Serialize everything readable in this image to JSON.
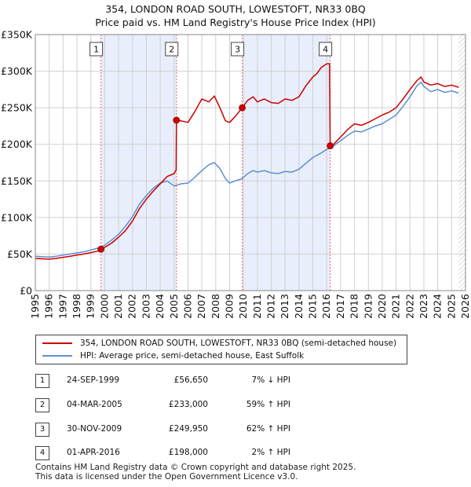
{
  "title_line1": "354, LONDON ROAD SOUTH, LOWESTOFT, NR33 0BQ",
  "title_line2": "Price paid vs. HM Land Registry's House Price Index (HPI)",
  "colors": {
    "price_paid": "#cc0000",
    "hpi": "#5b8fd0",
    "highlight_band": "#e8eefb",
    "grid": "#d0d0d0",
    "marker_line": "#ee6666"
  },
  "legend": {
    "price_paid_label": "354, LONDON ROAD SOUTH, LOWESTOFT, NR33 0BQ (semi-detached house)",
    "hpi_label": "HPI: Average price, semi-detached house, East Suffolk"
  },
  "sales": [
    {
      "num": "1",
      "date": "24-SEP-1999",
      "price": "£56,650",
      "hpi_change": "7% ↓ HPI"
    },
    {
      "num": "2",
      "date": "04-MAR-2005",
      "price": "£233,000",
      "hpi_change": "59% ↑ HPI"
    },
    {
      "num": "3",
      "date": "30-NOV-2009",
      "price": "£249,950",
      "hpi_change": "62% ↑ HPI"
    },
    {
      "num": "4",
      "date": "01-APR-2016",
      "price": "£198,000",
      "hpi_change": "2% ↑ HPI"
    }
  ],
  "footer_line1": "Contains HM Land Registry data © Crown copyright and database right 2025.",
  "footer_line2": "This data is licensed under the Open Government Licence v3.0.",
  "chart_data": {
    "type": "line",
    "title": "354, LONDON ROAD SOUTH, LOWESTOFT, NR33 0BQ — Price paid vs. HM Land Registry's House Price Index (HPI)",
    "xlabel": "",
    "ylabel": "",
    "xlim": [
      1995,
      2026
    ],
    "ylim": [
      0,
      350000
    ],
    "y_ticks": [
      0,
      50000,
      100000,
      150000,
      200000,
      250000,
      300000,
      350000
    ],
    "y_tick_labels": [
      "£0",
      "£50K",
      "£100K",
      "£150K",
      "£200K",
      "£250K",
      "£300K",
      "£350K"
    ],
    "x_ticks": [
      1995,
      1996,
      1997,
      1998,
      1999,
      2000,
      2001,
      2002,
      2003,
      2004,
      2005,
      2006,
      2007,
      2008,
      2009,
      2010,
      2011,
      2012,
      2013,
      2014,
      2015,
      2016,
      2017,
      2018,
      2019,
      2020,
      2021,
      2022,
      2023,
      2024,
      2025,
      2026
    ],
    "x_tick_labels": [
      "1995",
      "1996",
      "1997",
      "1998",
      "1999",
      "2000",
      "2001",
      "2002",
      "2003",
      "2004",
      "2005",
      "2006",
      "2007",
      "2008",
      "2009",
      "2010",
      "2011",
      "2012",
      "2013",
      "2014",
      "2015",
      "2016",
      "2017",
      "2018",
      "2019",
      "2020",
      "2021",
      "2022",
      "2023",
      "2024",
      "2025",
      "2026"
    ],
    "highlight_ranges": [
      [
        1999.73,
        2005.17
      ],
      [
        2009.91,
        2016.25
      ]
    ],
    "hatched_from": 2025.5,
    "sale_markers": [
      {
        "label": "1",
        "x": 1999.73,
        "price": 56650
      },
      {
        "label": "2",
        "x": 2005.17,
        "price": 233000
      },
      {
        "label": "3",
        "x": 2009.91,
        "price": 249950
      },
      {
        "label": "4",
        "x": 2016.25,
        "price": 198000
      }
    ],
    "series": [
      {
        "name": "354, LONDON ROAD SOUTH, LOWESTOFT, NR33 0BQ (semi-detached house)",
        "x": [
          1995.0,
          1995.5,
          1996.0,
          1996.5,
          1997.0,
          1997.5,
          1998.0,
          1998.5,
          1999.0,
          1999.5,
          1999.73,
          2000.0,
          2000.5,
          2001.0,
          2001.5,
          2002.0,
          2002.5,
          2003.0,
          2003.5,
          2004.0,
          2004.5,
          2005.0,
          2005.15,
          2005.17,
          2005.5,
          2006.0,
          2006.5,
          2007.0,
          2007.5,
          2007.9,
          2008.3,
          2008.7,
          2009.0,
          2009.4,
          2009.91,
          2010.3,
          2010.7,
          2011.0,
          2011.5,
          2012.0,
          2012.5,
          2013.0,
          2013.5,
          2014.0,
          2014.5,
          2015.0,
          2015.3,
          2015.6,
          2016.0,
          2016.2,
          2016.25,
          2016.5,
          2017.0,
          2017.5,
          2018.0,
          2018.5,
          2019.0,
          2019.5,
          2020.0,
          2020.5,
          2021.0,
          2021.5,
          2022.0,
          2022.5,
          2022.8,
          2023.0,
          2023.5,
          2024.0,
          2024.5,
          2025.0,
          2025.5
        ],
        "values": [
          44000,
          43500,
          43000,
          44000,
          45500,
          47000,
          48500,
          50000,
          52000,
          54000,
          56650,
          59000,
          65000,
          73000,
          82000,
          95000,
          112000,
          125000,
          136000,
          146000,
          156000,
          160000,
          165000,
          233000,
          232000,
          230000,
          245000,
          262000,
          258000,
          266000,
          250000,
          232000,
          230000,
          238000,
          249950,
          260000,
          265000,
          258000,
          262000,
          257000,
          256000,
          262000,
          260000,
          265000,
          280000,
          292000,
          297000,
          305000,
          310000,
          310000,
          198000,
          200000,
          210000,
          220000,
          228000,
          226000,
          230000,
          235000,
          240000,
          244000,
          250000,
          262000,
          275000,
          287000,
          292000,
          285000,
          281000,
          283000,
          279000,
          281000,
          278000
        ]
      },
      {
        "name": "HPI: Average price, semi-detached house, East Suffolk",
        "x": [
          1995.0,
          1995.5,
          1996.0,
          1996.5,
          1997.0,
          1997.5,
          1998.0,
          1998.5,
          1999.0,
          1999.5,
          2000.0,
          2000.5,
          2001.0,
          2001.5,
          2002.0,
          2002.5,
          2003.0,
          2003.5,
          2004.0,
          2004.5,
          2005.0,
          2005.5,
          2006.0,
          2006.5,
          2007.0,
          2007.5,
          2007.9,
          2008.3,
          2008.7,
          2009.0,
          2009.4,
          2009.9,
          2010.3,
          2010.7,
          2011.0,
          2011.5,
          2012.0,
          2012.5,
          2013.0,
          2013.5,
          2014.0,
          2014.5,
          2015.0,
          2015.5,
          2016.0,
          2016.25,
          2016.5,
          2017.0,
          2017.5,
          2018.0,
          2018.5,
          2019.0,
          2019.5,
          2020.0,
          2020.5,
          2021.0,
          2021.5,
          2022.0,
          2022.5,
          2022.8,
          2023.0,
          2023.5,
          2024.0,
          2024.5,
          2025.0,
          2025.5
        ],
        "values": [
          47000,
          46500,
          46000,
          47000,
          48500,
          50000,
          51500,
          53000,
          55500,
          58000,
          62000,
          69000,
          77000,
          88000,
          101000,
          118000,
          130000,
          140000,
          147000,
          150000,
          143000,
          146000,
          147000,
          155000,
          164000,
          172000,
          175000,
          167000,
          153000,
          147000,
          150000,
          153000,
          160000,
          164000,
          162000,
          164000,
          161000,
          160000,
          163000,
          162000,
          166000,
          174000,
          182000,
          187000,
          193000,
          195000,
          198000,
          205000,
          212000,
          218000,
          217000,
          221000,
          225000,
          228000,
          234000,
          240000,
          252000,
          265000,
          280000,
          285000,
          279000,
          272000,
          275000,
          271000,
          273000,
          270000
        ]
      }
    ]
  }
}
